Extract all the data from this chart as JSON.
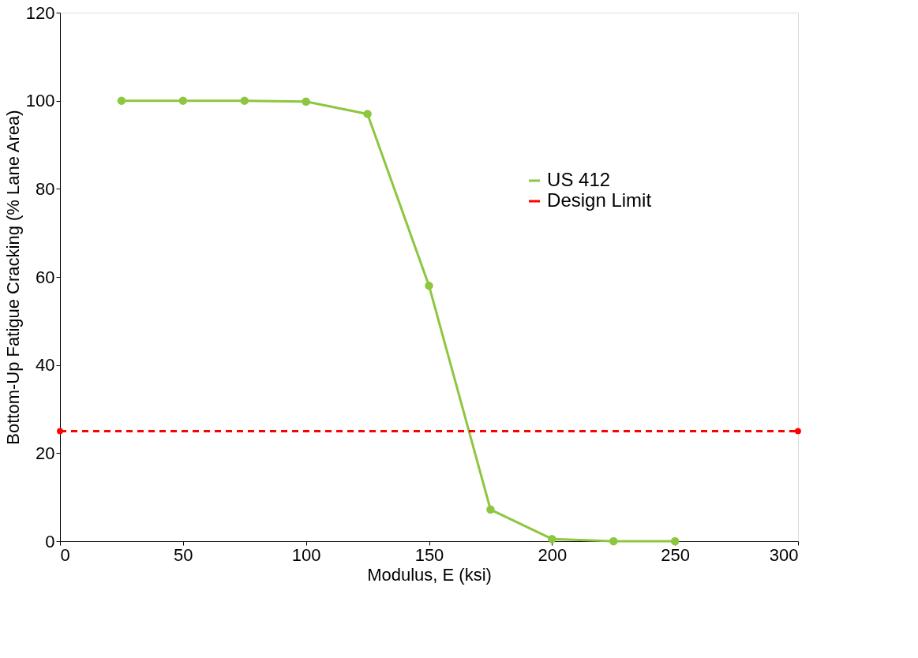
{
  "chart_data": {
    "type": "line",
    "xlabel": "Modulus, E (ksi)",
    "ylabel": "Bottom-Up Fatigue Cracking (% Lane Area)",
    "xlim": [
      0,
      300
    ],
    "xticks": [
      0,
      50,
      100,
      150,
      200,
      250,
      300
    ],
    "ylim": [
      0,
      120
    ],
    "yticks": [
      0,
      20,
      40,
      60,
      80,
      100,
      120
    ],
    "grid": false,
    "legend": "right",
    "series": [
      {
        "name": "US 412",
        "color": "#8dc63f",
        "marker": "circle",
        "line_style": "solid",
        "x": [
          25,
          50,
          75,
          100,
          125,
          150,
          175,
          200,
          225,
          250
        ],
        "values": [
          100,
          100,
          100,
          99.8,
          97,
          58,
          7.2,
          0.5,
          0,
          0
        ]
      },
      {
        "name": "Design Limit",
        "color": "#ff0000",
        "marker": "circle",
        "line_style": "dashed",
        "x": [
          0,
          300
        ],
        "values": [
          25,
          25
        ]
      }
    ]
  }
}
